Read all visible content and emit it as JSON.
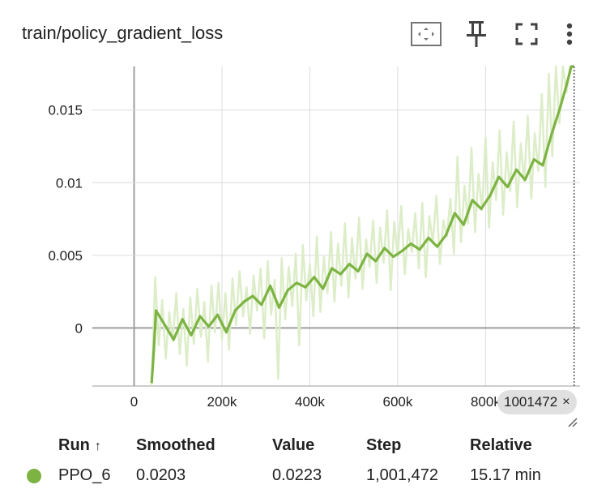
{
  "card": {
    "title": "train/policy_gradient_loss",
    "toolbar": {
      "fit_icon": "fit-domain-icon",
      "pin_icon": "pin-icon",
      "fullscreen_icon": "fullscreen-icon",
      "menu_icon": "more-vert-icon"
    }
  },
  "hover": {
    "step_label": "1001472",
    "close_glyph": "×"
  },
  "colors": {
    "smoothed": "#7cb342",
    "raw": "#dcedc8",
    "grid": "#dcdcdc",
    "axis": "#9e9e9e",
    "cursor": "#555555",
    "run_dot": "#7cb342"
  },
  "legend": {
    "headers": {
      "run": "Run",
      "run_sort": "↑",
      "smoothed": "Smoothed",
      "value": "Value",
      "step": "Step",
      "relative": "Relative"
    },
    "rows": [
      {
        "run": "PPO_6",
        "smoothed": "0.0203",
        "value": "0.0223",
        "step": "1,001,472",
        "relative": "15.17 min"
      }
    ]
  },
  "chart_data": {
    "type": "line",
    "title": "train/policy_gradient_loss",
    "xlabel": "",
    "ylabel": "",
    "xlim": [
      -95000,
      1015000
    ],
    "ylim": [
      -0.004,
      0.018
    ],
    "x_ticks": [
      0,
      200000,
      400000,
      600000,
      800000
    ],
    "x_tick_labels": [
      "0",
      "200k",
      "400k",
      "600k",
      "800k"
    ],
    "y_ticks": [
      0,
      0.005,
      0.01,
      0.015
    ],
    "y_tick_labels": [
      "0",
      "0.005",
      "0.01",
      "0.015"
    ],
    "grid": true,
    "cursor_step": 1001472,
    "series": [
      {
        "name": "PPO_6",
        "smoothed": {
          "x": [
            40000,
            45000,
            50000,
            70000,
            90000,
            110000,
            130000,
            150000,
            170000,
            190000,
            210000,
            230000,
            250000,
            270000,
            290000,
            310000,
            330000,
            350000,
            370000,
            390000,
            410000,
            430000,
            450000,
            470000,
            490000,
            510000,
            530000,
            550000,
            570000,
            590000,
            610000,
            630000,
            650000,
            670000,
            690000,
            710000,
            730000,
            750000,
            770000,
            790000,
            810000,
            830000,
            850000,
            870000,
            890000,
            910000,
            930000,
            950000,
            970000,
            985000,
            995000,
            1001472
          ],
          "y": [
            -0.0038,
            -0.0015,
            0.0012,
            0.0002,
            -0.0008,
            0.0006,
            -0.0005,
            0.0008,
            0.0001,
            0.0009,
            -0.0003,
            0.0012,
            0.0018,
            0.0022,
            0.0016,
            0.0029,
            0.0014,
            0.0026,
            0.0031,
            0.0028,
            0.0035,
            0.0027,
            0.0041,
            0.0037,
            0.0044,
            0.0039,
            0.0051,
            0.0046,
            0.0055,
            0.0049,
            0.0053,
            0.0058,
            0.0054,
            0.0062,
            0.0056,
            0.0064,
            0.0079,
            0.0071,
            0.0088,
            0.0082,
            0.0091,
            0.0104,
            0.0097,
            0.0109,
            0.0102,
            0.0116,
            0.0112,
            0.0133,
            0.0152,
            0.0168,
            0.0183,
            0.0203
          ]
        },
        "raw": {
          "x": [
            40000,
            48000,
            56000,
            64000,
            72000,
            80000,
            88000,
            96000,
            104000,
            112000,
            120000,
            128000,
            136000,
            144000,
            152000,
            160000,
            168000,
            176000,
            184000,
            192000,
            200000,
            208000,
            216000,
            224000,
            232000,
            240000,
            248000,
            256000,
            264000,
            272000,
            280000,
            288000,
            296000,
            304000,
            312000,
            320000,
            328000,
            336000,
            344000,
            352000,
            360000,
            368000,
            376000,
            384000,
            392000,
            400000,
            408000,
            416000,
            424000,
            432000,
            440000,
            448000,
            456000,
            464000,
            472000,
            480000,
            488000,
            496000,
            504000,
            512000,
            520000,
            528000,
            536000,
            544000,
            552000,
            560000,
            568000,
            576000,
            584000,
            592000,
            600000,
            608000,
            616000,
            624000,
            632000,
            640000,
            648000,
            656000,
            664000,
            672000,
            680000,
            688000,
            696000,
            704000,
            712000,
            720000,
            728000,
            736000,
            744000,
            752000,
            760000,
            768000,
            776000,
            784000,
            792000,
            800000,
            808000,
            816000,
            824000,
            832000,
            840000,
            848000,
            856000,
            864000,
            872000,
            880000,
            888000,
            896000,
            904000,
            912000,
            920000,
            928000,
            936000,
            944000,
            952000,
            960000,
            968000,
            976000,
            984000,
            992000,
            1001472
          ],
          "y": [
            -0.0042,
            0.0035,
            -0.0012,
            0.0019,
            -0.0021,
            0.0011,
            -0.0009,
            0.0024,
            -0.0018,
            0.0013,
            -0.0026,
            0.0021,
            -0.0011,
            0.0027,
            -0.0006,
            0.0018,
            -0.0023,
            0.0029,
            -0.0003,
            0.0031,
            -0.0008,
            0.0024,
            -0.0015,
            0.0034,
            0.0002,
            0.0039,
            0.0008,
            0.0028,
            -0.0004,
            0.0036,
            0.0012,
            0.0041,
            -0.0007,
            0.0046,
            0.0009,
            0.0033,
            -0.0035,
            0.0048,
            0.0006,
            0.0042,
            0.0015,
            0.0051,
            -0.0012,
            0.0057,
            0.0019,
            0.0044,
            0.0008,
            0.0063,
            0.0011,
            0.0049,
            0.0024,
            0.0066,
            0.0018,
            0.0058,
            0.0029,
            0.0072,
            0.0021,
            0.0062,
            0.0034,
            0.0076,
            0.0027,
            0.0061,
            0.0042,
            0.0074,
            0.0031,
            0.0069,
            0.0045,
            0.0081,
            0.0026,
            0.0073,
            0.0049,
            0.0084,
            0.0037,
            0.0068,
            0.0052,
            0.0079,
            0.0041,
            0.0086,
            0.0035,
            0.0077,
            0.0058,
            0.0091,
            0.0044,
            0.0074,
            0.0063,
            0.0089,
            0.0051,
            0.0118,
            0.0059,
            0.0098,
            0.0072,
            0.0124,
            0.0066,
            0.0106,
            0.0081,
            0.0131,
            0.0069,
            0.0114,
            0.0088,
            0.0136,
            0.0078,
            0.0121,
            0.0094,
            0.0142,
            0.0083,
            0.0127,
            0.0101,
            0.0146,
            0.0089,
            0.0134,
            0.0108,
            0.0161,
            0.0097,
            0.0175,
            0.0118,
            0.0182,
            0.0141,
            0.0192,
            0.0162,
            0.0195,
            0.0223
          ]
        }
      }
    ]
  }
}
